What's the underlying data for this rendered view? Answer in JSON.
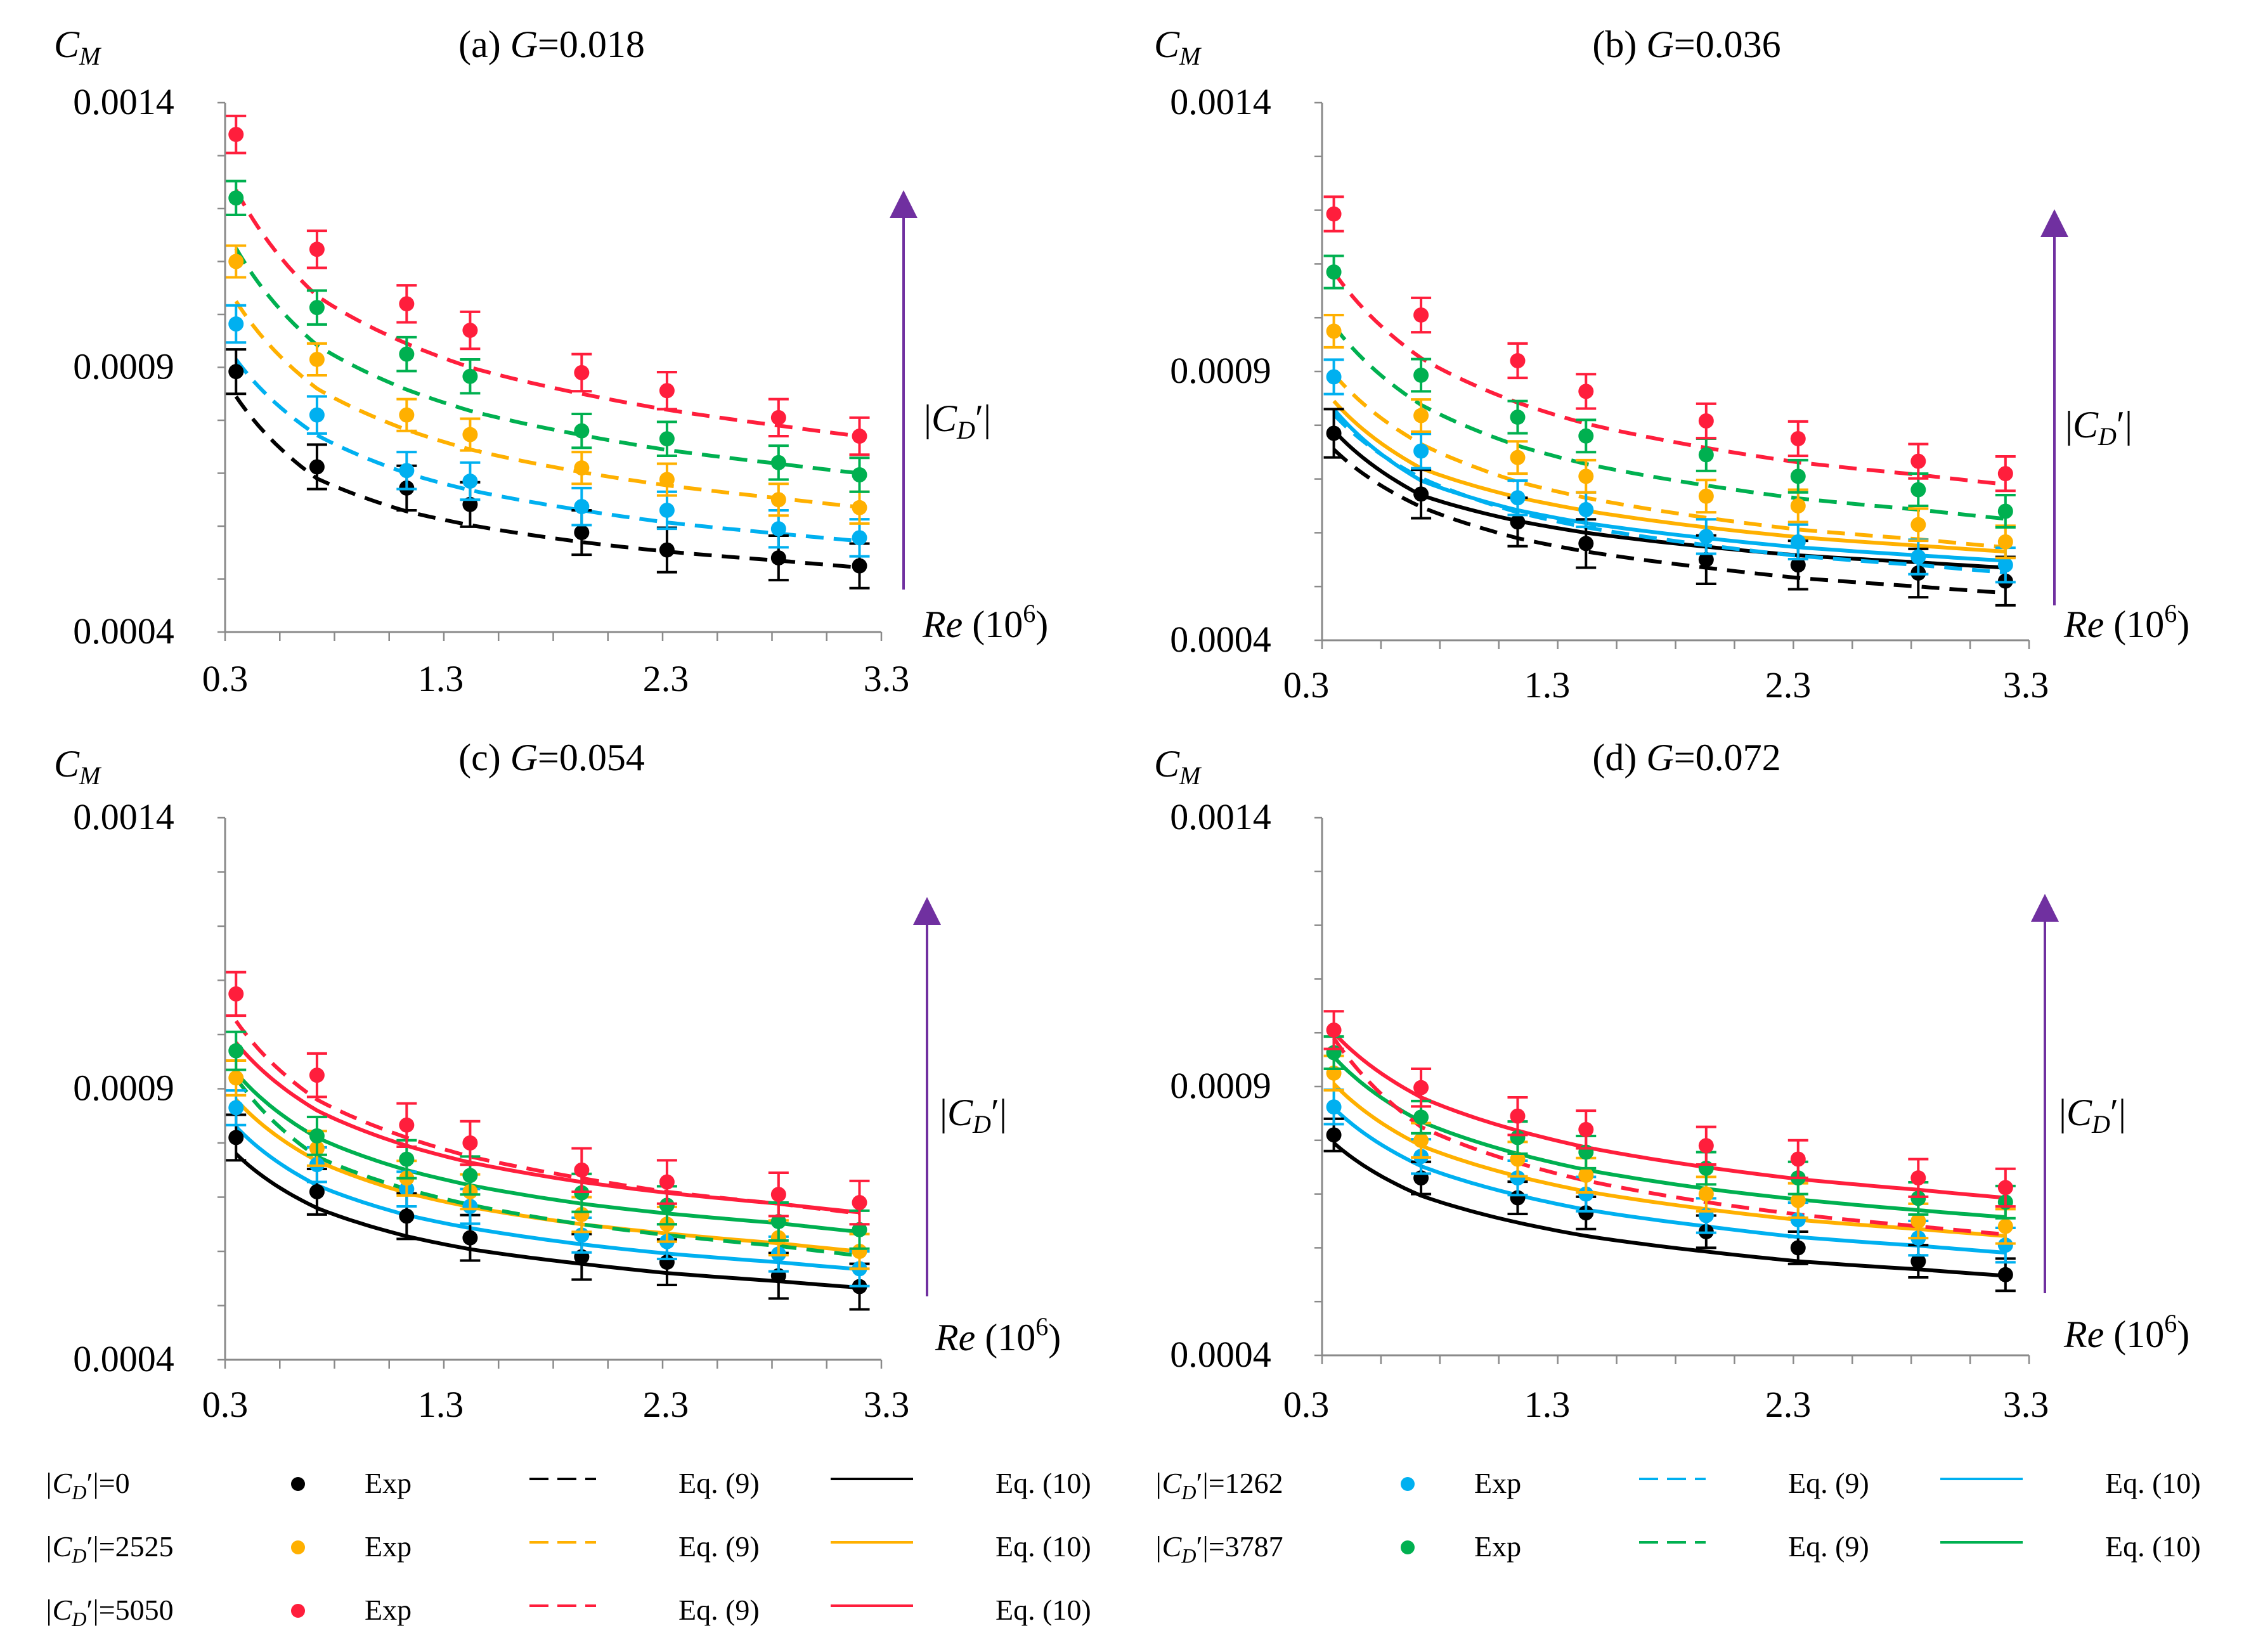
{
  "chart_data": {
    "type": "scatter",
    "x_axis": {
      "label": "Re",
      "unit": "(10",
      "unit_exp": "6",
      "unit_close": ")",
      "ticks": [
        "0.3",
        "1.3",
        "2.3",
        "3.3"
      ],
      "range": [
        0.3,
        3.3
      ]
    },
    "y_axis": {
      "label": "C",
      "label_sub": "M",
      "ticks": [
        "0.0004",
        "0.0009",
        "0.0014"
      ],
      "range": [
        0.0004,
        0.0014
      ]
    },
    "x_exp": [
      0.35,
      0.72,
      1.13,
      1.42,
      1.93,
      2.32,
      2.83,
      3.2
    ],
    "arrow_label": {
      "open": "|",
      "main": "C",
      "sub": "D",
      "prime": "′",
      "close": "|"
    },
    "colors": {
      "0": "#000000",
      "1262": "#00b0f0",
      "2525": "#ffb000",
      "3787": "#00b050",
      "5050": "#ff1e3c",
      "arrow": "#7030a0"
    },
    "panels": [
      {
        "id": "a",
        "label": "(a)",
        "g_prefix": "G",
        "g_value": "=0.018",
        "series": [
          {
            "cd": "0",
            "exp": [
              0.000892,
              0.000712,
              0.000672,
              0.000641,
              0.000588,
              0.000555,
              0.00054,
              0.000525
            ],
            "err": 4.2e-05,
            "eq9": [
              0.000845,
              0.00069,
              0.000628,
              0.000602,
              0.00057,
              0.000552,
              0.000535,
              0.000522
            ],
            "eq10": null
          },
          {
            "cd": "1262",
            "exp": [
              0.000982,
              0.00081,
              0.000705,
              0.000685,
              0.000637,
              0.00063,
              0.000595,
              0.000578
            ],
            "err": 3.5e-05,
            "eq9": [
              0.000915,
              0.000772,
              0.0007,
              0.000668,
              0.00063,
              0.000607,
              0.000586,
              0.000572
            ],
            "eq10": null
          },
          {
            "cd": "2525",
            "exp": [
              0.0011,
              0.000915,
              0.00081,
              0.000773,
              0.00071,
              0.000688,
              0.00065,
              0.000635
            ],
            "err": 3e-05,
            "eq9": [
              0.001025,
              0.00086,
              0.000782,
              0.000745,
              0.000702,
              0.000677,
              0.000653,
              0.000636
            ],
            "eq10": null
          },
          {
            "cd": "3787",
            "exp": [
              0.00122,
              0.001013,
              0.000925,
              0.000883,
              0.00078,
              0.000765,
              0.00072,
              0.000697
            ],
            "err": 3.2e-05,
            "eq9": [
              0.001125,
              0.000942,
              0.000858,
              0.000818,
              0.000772,
              0.000744,
              0.000718,
              0.0007
            ],
            "eq10": null
          },
          {
            "cd": "5050",
            "exp": [
              0.00134,
              0.001123,
              0.00102,
              0.00097,
              0.00089,
              0.000856,
              0.000805,
              0.00077
            ],
            "err": 3.5e-05,
            "eq9": [
              0.001235,
              0.001035,
              0.000945,
              0.0009,
              0.00085,
              0.00082,
              0.00079,
              0.00077
            ],
            "eq10": null
          }
        ]
      },
      {
        "id": "b",
        "label": "(b)",
        "g_prefix": "G",
        "g_value": "=0.036",
        "series": [
          {
            "cd": "0",
            "exp": [
              0.000785,
              0.000672,
              0.00062,
              0.00058,
              0.00055,
              0.00054,
              0.000525,
              0.00051
            ],
            "err": 4.5e-05,
            "eq9": [
              0.000755,
              0.000648,
              0.00059,
              0.000565,
              0.000535,
              0.000516,
              0.0005,
              0.000488
            ],
            "eq10": [
              0.00079,
              0.00067,
              0.000622,
              0.0006,
              0.000574,
              0.000558,
              0.000545,
              0.000535
            ]
          },
          {
            "cd": "1262",
            "exp": [
              0.00089,
              0.000752,
              0.000665,
              0.000643,
              0.000593,
              0.000583,
              0.000555,
              0.00054
            ],
            "err": 3.2e-05,
            "eq9": [
              0.00082,
              0.000702,
              0.000638,
              0.00061,
              0.000577,
              0.000557,
              0.00054,
              0.000526
            ],
            "eq10": [
              0.00083,
              0.000697,
              0.000642,
              0.000618,
              0.00059,
              0.000573,
              0.000558,
              0.000548
            ]
          },
          {
            "cd": "2525",
            "exp": [
              0.000975,
              0.000818,
              0.00074,
              0.000705,
              0.000668,
              0.00065,
              0.000615,
              0.000583
            ],
            "err": 3e-05,
            "eq9": [
              0.000895,
              0.000765,
              0.000695,
              0.000665,
              0.000628,
              0.000606,
              0.000588,
              0.000573
            ],
            "eq10": [
              0.000845,
              0.00072,
              0.000666,
              0.000641,
              0.00061,
              0.000592,
              0.000576,
              0.000565
            ]
          },
          {
            "cd": "3787",
            "exp": [
              0.001085,
              0.000893,
              0.000815,
              0.00078,
              0.000745,
              0.000705,
              0.00068,
              0.00064
            ],
            "err": 3e-05,
            "eq9": [
              0.000985,
              0.000838,
              0.000762,
              0.000728,
              0.000688,
              0.000664,
              0.000643,
              0.000626
            ],
            "eq10": null
          },
          {
            "cd": "5050",
            "exp": [
              0.001193,
              0.001005,
              0.00092,
              0.000863,
              0.000808,
              0.000775,
              0.000733,
              0.00071
            ],
            "err": 3.2e-05,
            "eq9": [
              0.001085,
              0.000925,
              0.000842,
              0.000803,
              0.000758,
              0.000731,
              0.000708,
              0.00069
            ],
            "eq10": null
          }
        ]
      },
      {
        "id": "c",
        "label": "(c)",
        "g_prefix": "G",
        "g_value": "=0.054",
        "series": [
          {
            "cd": "0",
            "exp": [
              0.00081,
              0.00071,
              0.000665,
              0.000625,
              0.00059,
              0.00058,
              0.000555,
              0.000535
            ],
            "err": 4.2e-05,
            "eq9": null,
            "eq10": [
              0.00078,
              0.00068,
              0.000628,
              0.000604,
              0.000577,
              0.00056,
              0.000545,
              0.000533
            ]
          },
          {
            "cd": "1262",
            "exp": [
              0.000865,
              0.00076,
              0.000715,
              0.000683,
              0.00063,
              0.000618,
              0.000595,
              0.000568
            ],
            "err": 3.2e-05,
            "eq9": null,
            "eq10": [
              0.00083,
              0.000722,
              0.000667,
              0.000643,
              0.000613,
              0.000596,
              0.00058,
              0.000567
            ]
          },
          {
            "cd": "2525",
            "exp": [
              0.00092,
              0.00079,
              0.000735,
              0.00071,
              0.000668,
              0.00065,
              0.000625,
              0.0006
            ],
            "err": 3.2e-05,
            "eq9": null,
            "eq10": [
              0.00088,
              0.000767,
              0.000708,
              0.000682,
              0.00065,
              0.000633,
              0.000615,
              0.0006
            ]
          },
          {
            "cd": "3787",
            "exp": [
              0.00097,
              0.000813,
              0.00077,
              0.00074,
              0.000708,
              0.000685,
              0.000655,
              0.00064
            ],
            "err": 3.5e-05,
            "eq9": [
              0.00092,
              0.000775,
              0.000715,
              0.000686,
              0.00065,
              0.00063,
              0.00061,
              0.000592
            ],
            "eq10": [
              0.00093,
              0.00081,
              0.00075,
              0.000722,
              0.000688,
              0.00067,
              0.000652,
              0.000636
            ]
          },
          {
            "cd": "5050",
            "exp": [
              0.001075,
              0.000925,
              0.000833,
              0.0008,
              0.00075,
              0.000728,
              0.000705,
              0.00069
            ],
            "err": 4e-05,
            "eq9": [
              0.001025,
              0.00088,
              0.00081,
              0.000775,
              0.000735,
              0.00071,
              0.000688,
              0.00067
            ],
            "eq10": [
              0.000985,
              0.00086,
              0.000795,
              0.000764,
              0.000728,
              0.000708,
              0.000688,
              0.000672
            ]
          }
        ]
      },
      {
        "id": "d",
        "label": "(d)",
        "g_prefix": "G",
        "g_value": "=0.072",
        "series": [
          {
            "cd": "0",
            "exp": [
              0.00081,
              0.00073,
              0.000693,
              0.000665,
              0.00063,
              0.0006,
              0.000575,
              0.00055
            ],
            "err": 3e-05,
            "eq9": null,
            "eq10": [
              0.000795,
              0.000697,
              0.000647,
              0.000622,
              0.000593,
              0.000575,
              0.00056,
              0.000548
            ]
          },
          {
            "cd": "1262",
            "exp": [
              0.000862,
              0.00077,
              0.00073,
              0.0007,
              0.00066,
              0.000652,
              0.000618,
              0.000605
            ],
            "err": 3.2e-05,
            "eq9": null,
            "eq10": [
              0.00086,
              0.000752,
              0.000698,
              0.000671,
              0.00064,
              0.00062,
              0.000604,
              0.000591
            ]
          },
          {
            "cd": "2525",
            "exp": [
              0.000925,
              0.0008,
              0.000765,
              0.000735,
              0.0007,
              0.000688,
              0.00065,
              0.00064
            ],
            "err": 3.2e-05,
            "eq9": null,
            "eq10": [
              0.000905,
              0.00079,
              0.000733,
              0.000705,
              0.000672,
              0.000652,
              0.000635,
              0.000622
            ]
          },
          {
            "cd": "3787",
            "exp": [
              0.000963,
              0.000843,
              0.000805,
              0.000778,
              0.000748,
              0.00073,
              0.000692,
              0.000685
            ],
            "err": 3e-05,
            "eq9": null,
            "eq10": [
              0.000955,
              0.000835,
              0.000775,
              0.000745,
              0.00071,
              0.00069,
              0.00067,
              0.000657
            ]
          },
          {
            "cd": "5050",
            "exp": [
              0.001005,
              0.000898,
              0.000845,
              0.00082,
              0.00079,
              0.000765,
              0.00073,
              0.000712
            ],
            "err": 3.5e-05,
            "eq9": [
              0.00099,
              0.000825,
              0.000758,
              0.000725,
              0.000685,
              0.000662,
              0.00064,
              0.000625
            ],
            "eq10": [
              0.001,
              0.00088,
              0.000818,
              0.000787,
              0.00075,
              0.000728,
              0.000708,
              0.000693
            ]
          }
        ]
      }
    ],
    "legend": [
      {
        "cd": "0",
        "label_prefix": "|C",
        "label_sub": "D",
        "label_suffix": "′|=0",
        "exp": "Exp",
        "eq9": "Eq. (9)",
        "eq10": "Eq. (10)"
      },
      {
        "cd": "2525",
        "label_prefix": "|C",
        "label_sub": "D",
        "label_suffix": "′|=2525",
        "exp": "Exp",
        "eq9": "Eq. (9)",
        "eq10": "Eq. (10)"
      },
      {
        "cd": "5050",
        "label_prefix": "|C",
        "label_sub": "D",
        "label_suffix": "′|=5050",
        "exp": "Exp",
        "eq9": "Eq. (9)",
        "eq10": "Eq. (10)"
      },
      {
        "cd": "1262",
        "label_prefix": "|C",
        "label_sub": "D",
        "label_suffix": "′|=1262",
        "exp": "Exp",
        "eq9": "Eq. (9)",
        "eq10": "Eq. (10)"
      },
      {
        "cd": "3787",
        "label_prefix": "|C",
        "label_sub": "D",
        "label_suffix": "′|=3787",
        "exp": "Exp",
        "eq9": "Eq. (9)",
        "eq10": "Eq. (10)"
      }
    ]
  }
}
